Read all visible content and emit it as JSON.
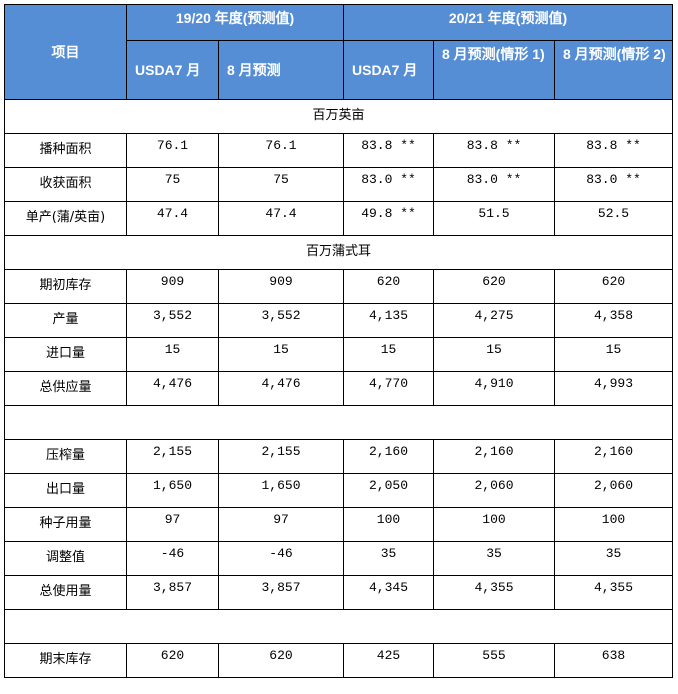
{
  "header": {
    "item": "项目",
    "year1": "19/20 年度(预测值)",
    "year2": "20/21 年度(预测值)",
    "subcols": [
      "USDA7 月",
      "8 月预测",
      "USDA7 月",
      "8 月预测(情形 1)",
      "8 月预测(情形 2)"
    ]
  },
  "rows": [
    {
      "section": "百万英亩"
    },
    {
      "label": "播种面积",
      "values": [
        "76.1",
        "76.1",
        "83.8 **",
        "83.8 **",
        "83.8 **"
      ]
    },
    {
      "label": "收获面积",
      "values": [
        "75",
        "75",
        "83.0 **",
        "83.0 **",
        "83.0 **"
      ]
    },
    {
      "label": "单产(蒲/英亩)",
      "values": [
        "47.4",
        "47.4",
        "49.8 **",
        "51.5",
        "52.5"
      ]
    },
    {
      "section": "百万蒲式耳"
    },
    {
      "label": "期初库存",
      "values": [
        "909",
        "909",
        "620",
        "620",
        "620"
      ]
    },
    {
      "label": "产量",
      "values": [
        "3,552",
        "3,552",
        "4,135",
        "4,275",
        "4,358"
      ]
    },
    {
      "label": "进口量",
      "values": [
        "15",
        "15",
        "15",
        "15",
        "15"
      ]
    },
    {
      "label": "总供应量",
      "values": [
        "4,476",
        "4,476",
        "4,770",
        "4,910",
        "4,993"
      ]
    },
    {
      "section": ""
    },
    {
      "label": "压榨量",
      "values": [
        "2,155",
        "2,155",
        "2,160",
        "2,160",
        "2,160"
      ]
    },
    {
      "label": "出口量",
      "values": [
        "1,650",
        "1,650",
        "2,050",
        "2,060",
        "2,060"
      ]
    },
    {
      "label": "种子用量",
      "values": [
        "97",
        "97",
        "100",
        "100",
        "100"
      ]
    },
    {
      "label": "调整值",
      "values": [
        "-46",
        "-46",
        "35",
        "35",
        "35"
      ]
    },
    {
      "label": "总使用量",
      "values": [
        "3,857",
        "3,857",
        "4,345",
        "4,355",
        "4,355"
      ]
    },
    {
      "section": ""
    },
    {
      "label": "期末库存",
      "values": [
        "620",
        "620",
        "425",
        "555",
        "638"
      ]
    }
  ],
  "colors": {
    "header_bg": "#558ed5",
    "header_text": "#ffffff"
  }
}
